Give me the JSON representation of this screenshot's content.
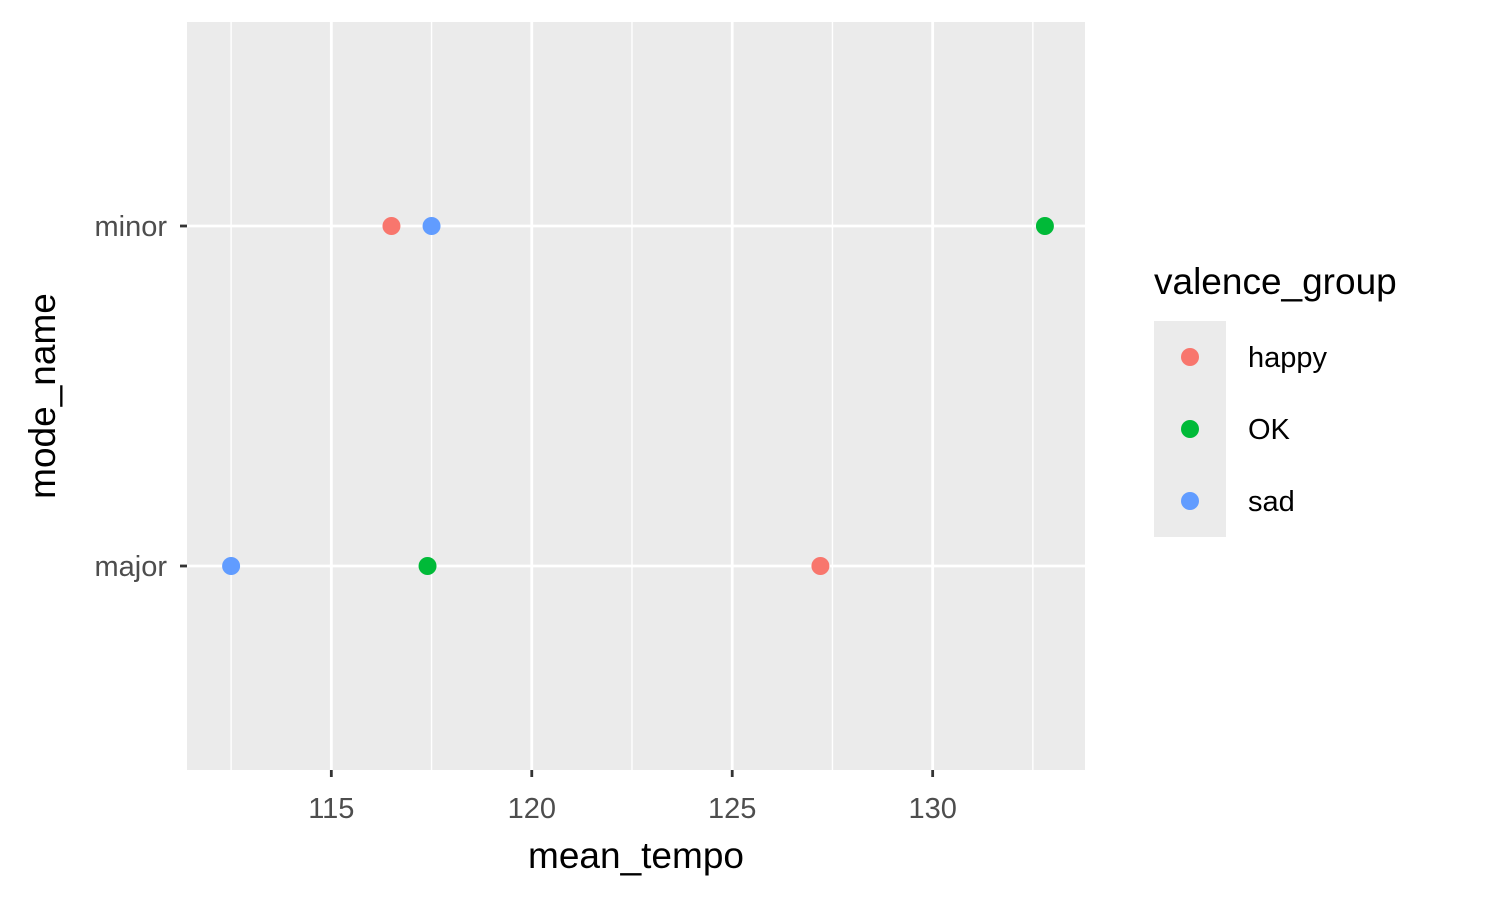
{
  "chart_data": {
    "type": "scatter",
    "title": "",
    "xlabel": "mean_tempo",
    "ylabel": "mode_name",
    "x_ticks": [
      115,
      120,
      125,
      130
    ],
    "x_tick_labels": [
      "115",
      "120",
      "125",
      "130"
    ],
    "xlim": [
      111.4,
      133.8
    ],
    "y_categories": [
      "major",
      "minor"
    ],
    "grid": true,
    "legend": {
      "title": "valence_group",
      "position": "right",
      "entries": [
        {
          "name": "happy",
          "color": "#F8766D"
        },
        {
          "name": "OK",
          "color": "#00BA38"
        },
        {
          "name": "sad",
          "color": "#619CFF"
        }
      ]
    },
    "series": [
      {
        "name": "happy",
        "color": "#F8766D",
        "points": [
          {
            "x": 116.5,
            "y": "minor"
          },
          {
            "x": 127.2,
            "y": "major"
          }
        ]
      },
      {
        "name": "OK",
        "color": "#00BA38",
        "points": [
          {
            "x": 132.8,
            "y": "minor"
          },
          {
            "x": 117.4,
            "y": "major"
          }
        ]
      },
      {
        "name": "sad",
        "color": "#619CFF",
        "points": [
          {
            "x": 117.5,
            "y": "minor"
          },
          {
            "x": 112.5,
            "y": "major"
          }
        ]
      }
    ]
  },
  "colors": {
    "panel_background": "#EBEBEB",
    "grid_line": "#FFFFFF",
    "tick": "#333333"
  }
}
